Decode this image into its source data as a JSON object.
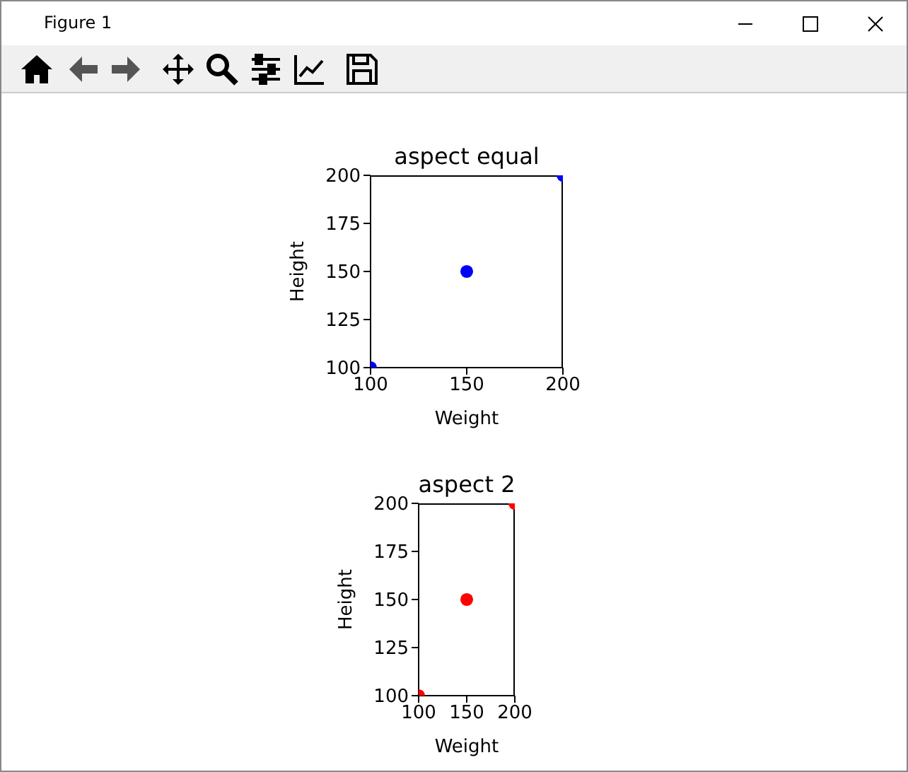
{
  "chart_data": [
    {
      "type": "scatter",
      "title": "aspect equal",
      "xlabel": "Weight",
      "ylabel": "Height",
      "annotations": [
        "Figure 1"
      ],
      "x": [
        100,
        150,
        200
      ],
      "series": [
        {
          "color": "#0000ff",
          "values": [
            100,
            150,
            200
          ]
        }
      ],
      "xlim": [
        100,
        200
      ],
      "ylim": [
        100,
        200
      ],
      "xticks": [
        100,
        150,
        200
      ],
      "yticks": [
        100,
        125,
        150,
        175,
        200
      ],
      "marker": "circle",
      "grid": false
    },
    {
      "type": "scatter",
      "title": "aspect 2",
      "xlabel": "Weight",
      "ylabel": "Height",
      "x": [
        100,
        150,
        200
      ],
      "series": [
        {
          "color": "#ff0000",
          "values": [
            100,
            150,
            200
          ]
        }
      ],
      "xlim": [
        100,
        200
      ],
      "ylim": [
        100,
        200
      ],
      "xticks": [
        100,
        150,
        200
      ],
      "yticks": [
        100,
        125,
        150,
        175,
        200
      ],
      "marker": "circle",
      "grid": false
    }
  ]
}
